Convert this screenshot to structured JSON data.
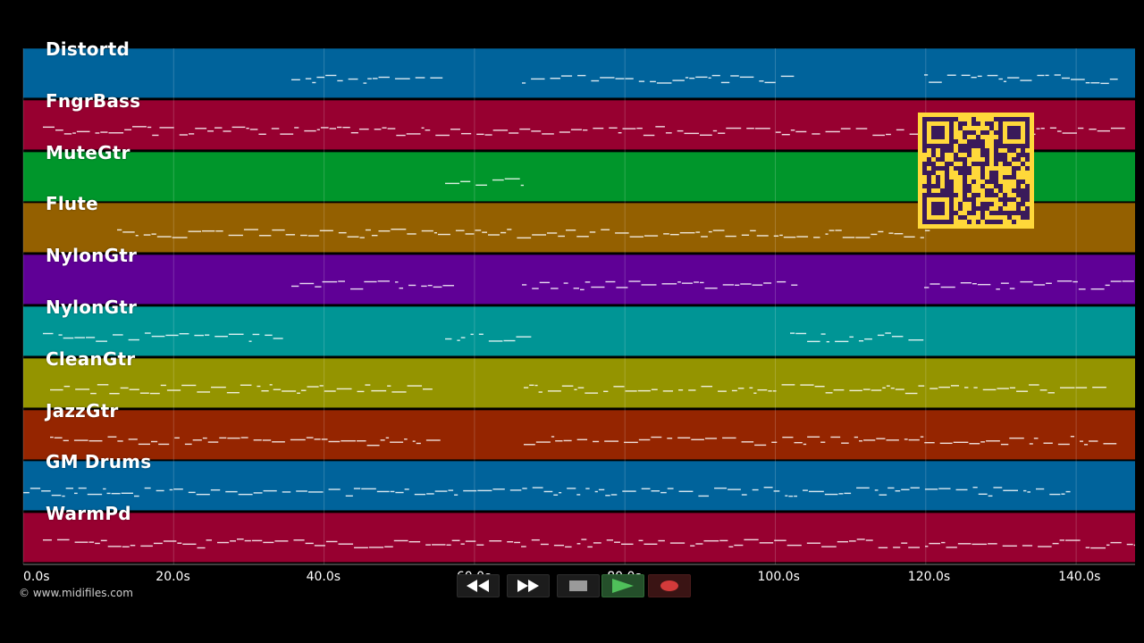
{
  "tracks": [
    {
      "name": "Distortd",
      "color": "#00639b"
    },
    {
      "name": "FngrBass",
      "color": "#970030"
    },
    {
      "name": "MuteGtr",
      "color": "#00962b"
    },
    {
      "name": "Flute",
      "color": "#946000"
    },
    {
      "name": "NylonGtr",
      "color": "#5f0096"
    },
    {
      "name": "NylonGtr",
      "color": "#009595"
    },
    {
      "name": "CleanGtr",
      "color": "#949400"
    },
    {
      "name": "JazzGtr",
      "color": "#952500"
    },
    {
      "name": "GM Drums",
      "color": "#00639b"
    },
    {
      "name": "WarmPd",
      "color": "#970030"
    }
  ],
  "timeline": {
    "ticks": [
      "0.0s",
      "20.0s",
      "40.0s",
      "60.0s",
      "80.0s",
      "100.0s",
      "120.0s",
      "140.0s"
    ]
  },
  "watermark": "© www.midifiles.com",
  "transport": {
    "buttons": [
      {
        "name": "rewind-button",
        "icon": "rewind-icon"
      },
      {
        "name": "fast-forward-button",
        "icon": "fast-forward-icon"
      },
      {
        "name": "stop-button",
        "icon": "stop-icon"
      },
      {
        "name": "play-button",
        "icon": "play-icon",
        "color": "#3fa34d"
      },
      {
        "name": "record-button",
        "icon": "record-icon",
        "color": "#d23a3a"
      }
    ]
  },
  "qr_code": {
    "icon": "qr-code-icon",
    "fg": "#3a1a5a",
    "bg": "#ffd83a"
  }
}
